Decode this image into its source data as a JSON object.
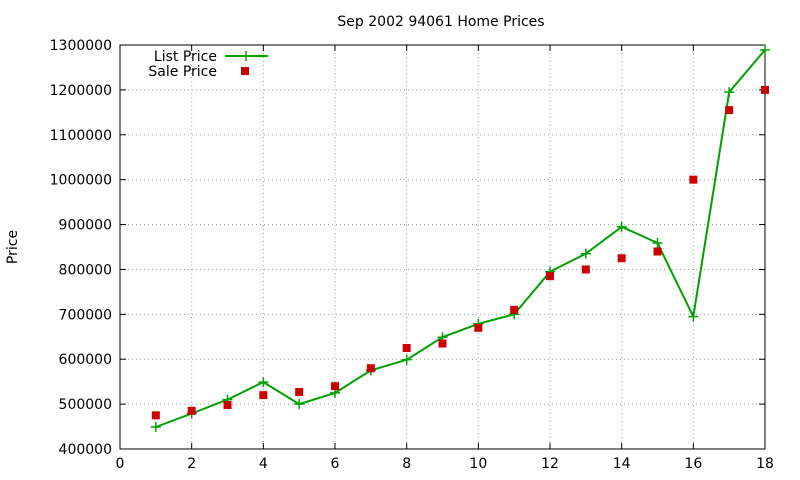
{
  "chart_data": {
    "type": "line",
    "title": "Sep 2002 94061 Home Prices",
    "xlabel": "",
    "ylabel": "Price",
    "xlim": [
      0,
      18
    ],
    "ylim": [
      400000,
      1300000
    ],
    "x_ticks": [
      0,
      2,
      4,
      6,
      8,
      10,
      12,
      14,
      16,
      18
    ],
    "y_ticks": [
      400000,
      500000,
      600000,
      700000,
      800000,
      900000,
      1000000,
      1100000,
      1200000,
      1300000
    ],
    "grid": true,
    "legend_position": "top-left",
    "x": [
      1,
      2,
      3,
      4,
      5,
      6,
      7,
      8,
      9,
      10,
      11,
      12,
      13,
      14,
      15,
      16,
      17,
      18
    ],
    "series": [
      {
        "name": "List Price",
        "style": "line-with-plus-markers",
        "color": "#00a000",
        "values": [
          449000,
          479000,
          510000,
          549000,
          500000,
          525000,
          575000,
          599000,
          649000,
          679000,
          700000,
          795000,
          835000,
          895000,
          859000,
          695000,
          1195000,
          1289000
        ]
      },
      {
        "name": "Sale Price",
        "style": "square-markers",
        "color": "#cc0000",
        "values": [
          475000,
          485000,
          498000,
          520000,
          527000,
          540000,
          580000,
          625000,
          635000,
          670000,
          710000,
          785000,
          800000,
          825000,
          840000,
          1000000,
          1155000,
          1200000
        ]
      }
    ]
  }
}
